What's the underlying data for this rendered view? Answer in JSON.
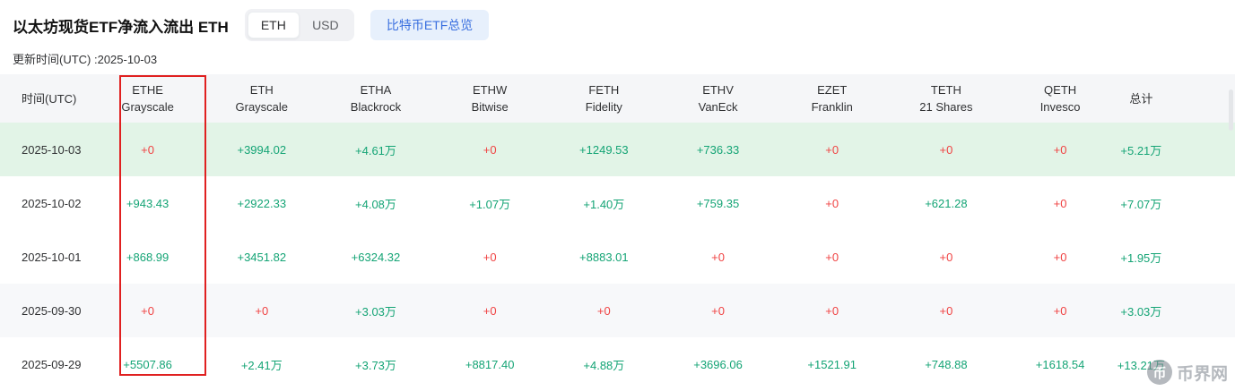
{
  "header": {
    "title": "以太坊现货ETF净流入流出 ETH",
    "toggle": {
      "options": [
        "ETH",
        "USD"
      ],
      "selected": "ETH"
    },
    "overview_button": "比特币ETF总览",
    "update_time": "更新时间(UTC) :2025-10-03"
  },
  "colors": {
    "positive_green": "#14a475",
    "zero_red": "#f04343",
    "highlight_border": "#e02020",
    "today_row_bg": "#e2f4e7",
    "alt_row_bg": "#f7f8fa",
    "header_row_bg": "#f5f6f8",
    "overview_button_bg": "#e7f0fc",
    "overview_button_text": "#3a6fdf"
  },
  "table": {
    "columns": [
      {
        "ticker": "时间(UTC)",
        "issuer": ""
      },
      {
        "ticker": "ETHE",
        "issuer": "Grayscale"
      },
      {
        "ticker": "ETH",
        "issuer": "Grayscale"
      },
      {
        "ticker": "ETHA",
        "issuer": "Blackrock"
      },
      {
        "ticker": "ETHW",
        "issuer": "Bitwise"
      },
      {
        "ticker": "FETH",
        "issuer": "Fidelity"
      },
      {
        "ticker": "ETHV",
        "issuer": "VanEck"
      },
      {
        "ticker": "EZET",
        "issuer": "Franklin"
      },
      {
        "ticker": "TETH",
        "issuer": "21 Shares"
      },
      {
        "ticker": "QETH",
        "issuer": "Invesco"
      },
      {
        "ticker": "总计",
        "issuer": ""
      }
    ],
    "rows": [
      {
        "date": "2025-10-03",
        "bg": "green",
        "cells": [
          {
            "v": "+0",
            "c": "red"
          },
          {
            "v": "+3994.02",
            "c": "green"
          },
          {
            "v": "+4.61万",
            "c": "green"
          },
          {
            "v": "+0",
            "c": "red"
          },
          {
            "v": "+1249.53",
            "c": "green"
          },
          {
            "v": "+736.33",
            "c": "green"
          },
          {
            "v": "+0",
            "c": "red"
          },
          {
            "v": "+0",
            "c": "red"
          },
          {
            "v": "+0",
            "c": "red"
          },
          {
            "v": "+5.21万",
            "c": "green"
          }
        ]
      },
      {
        "date": "2025-10-02",
        "bg": "white",
        "cells": [
          {
            "v": "+943.43",
            "c": "green"
          },
          {
            "v": "+2922.33",
            "c": "green"
          },
          {
            "v": "+4.08万",
            "c": "green"
          },
          {
            "v": "+1.07万",
            "c": "green"
          },
          {
            "v": "+1.40万",
            "c": "green"
          },
          {
            "v": "+759.35",
            "c": "green"
          },
          {
            "v": "+0",
            "c": "red"
          },
          {
            "v": "+621.28",
            "c": "green"
          },
          {
            "v": "+0",
            "c": "red"
          },
          {
            "v": "+7.07万",
            "c": "green"
          }
        ]
      },
      {
        "date": "2025-10-01",
        "bg": "white",
        "cells": [
          {
            "v": "+868.99",
            "c": "green"
          },
          {
            "v": "+3451.82",
            "c": "green"
          },
          {
            "v": "+6324.32",
            "c": "green"
          },
          {
            "v": "+0",
            "c": "red"
          },
          {
            "v": "+8883.01",
            "c": "green"
          },
          {
            "v": "+0",
            "c": "red"
          },
          {
            "v": "+0",
            "c": "red"
          },
          {
            "v": "+0",
            "c": "red"
          },
          {
            "v": "+0",
            "c": "red"
          },
          {
            "v": "+1.95万",
            "c": "green"
          }
        ]
      },
      {
        "date": "2025-09-30",
        "bg": "gray",
        "cells": [
          {
            "v": "+0",
            "c": "red"
          },
          {
            "v": "+0",
            "c": "red"
          },
          {
            "v": "+3.03万",
            "c": "green"
          },
          {
            "v": "+0",
            "c": "red"
          },
          {
            "v": "+0",
            "c": "red"
          },
          {
            "v": "+0",
            "c": "red"
          },
          {
            "v": "+0",
            "c": "red"
          },
          {
            "v": "+0",
            "c": "red"
          },
          {
            "v": "+0",
            "c": "red"
          },
          {
            "v": "+3.03万",
            "c": "green"
          }
        ]
      },
      {
        "date": "2025-09-29",
        "bg": "white",
        "cells": [
          {
            "v": "+5507.86",
            "c": "green"
          },
          {
            "v": "+2.41万",
            "c": "green"
          },
          {
            "v": "+3.73万",
            "c": "green"
          },
          {
            "v": "+8817.40",
            "c": "green"
          },
          {
            "v": "+4.88万",
            "c": "green"
          },
          {
            "v": "+3696.06",
            "c": "green"
          },
          {
            "v": "+1521.91",
            "c": "green"
          },
          {
            "v": "+748.88",
            "c": "green"
          },
          {
            "v": "+1618.54",
            "c": "green"
          },
          {
            "v": "+13.21万",
            "c": "green"
          }
        ]
      }
    ]
  },
  "watermark": {
    "icon": "币",
    "text": "币界网"
  }
}
